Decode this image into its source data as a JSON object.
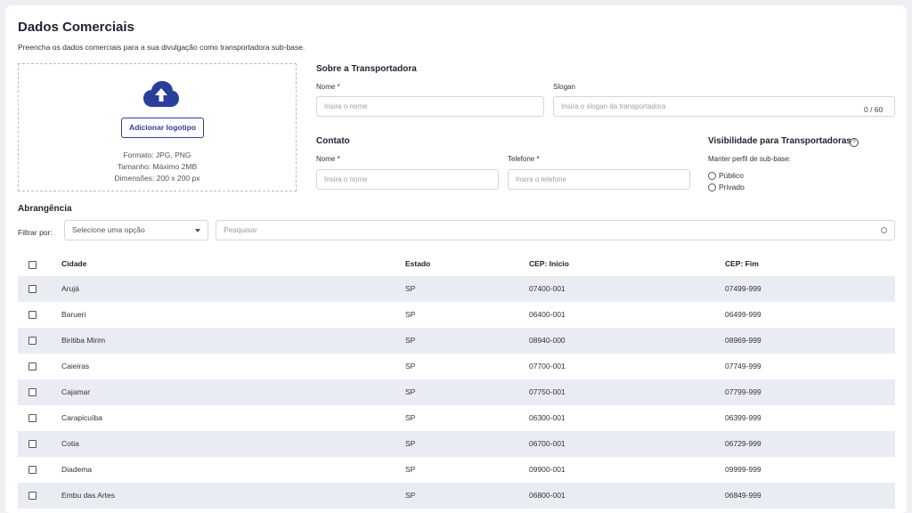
{
  "page": {
    "title": "Dados Comerciais",
    "subtitle": "Preencha os dados comerciais para a sua divulgação como transportadora sub-base."
  },
  "upload": {
    "button_label": "Adicionar logotipo",
    "format": "Formato: JPG, PNG",
    "size": "Tamanho: Máximo 2MB",
    "dimensions": "Dimensões: 200 x 200 px",
    "icon": "cloud-upload-icon"
  },
  "about": {
    "title": "Sobre a Transportadora",
    "name_label": "Nome *",
    "name_placeholder": "Insira o nome",
    "slogan_label": "Slogan",
    "slogan_placeholder": "Insira o slogan da transportadora",
    "slogan_counter": "0 / 60"
  },
  "contact": {
    "title": "Contato",
    "name_label": "Nome *",
    "name_placeholder": "Insira o nome",
    "phone_label": "Telefone *",
    "phone_placeholder": "Insira o telefone"
  },
  "visibility": {
    "title": "Visibilidade para Transportadoras",
    "help_icon": "help-circle-icon",
    "help_glyph": "?",
    "question": "Manter perfil de sub-base:",
    "options": [
      "Público",
      "Privado"
    ]
  },
  "coverage": {
    "title": "Abrangência",
    "filter_label": "Filtrar por:",
    "filter_placeholder": "Selecione uma opção",
    "search_placeholder": "Pesquisar",
    "columns": [
      "Cidade",
      "Estado",
      "CEP: Início",
      "CEP: Fim"
    ],
    "rows": [
      {
        "city": "Arujá",
        "state": "SP",
        "start": "07400-001",
        "end": "07499-999"
      },
      {
        "city": "Barueri",
        "state": "SP",
        "start": "06400-001",
        "end": "06499-999"
      },
      {
        "city": "Biritiba Mirim",
        "state": "SP",
        "start": "08940-000",
        "end": "08969-999"
      },
      {
        "city": "Caieiras",
        "state": "SP",
        "start": "07700-001",
        "end": "07749-999"
      },
      {
        "city": "Cajamar",
        "state": "SP",
        "start": "07750-001",
        "end": "07799-999"
      },
      {
        "city": "Carapicuíba",
        "state": "SP",
        "start": "06300-001",
        "end": "06399-999"
      },
      {
        "city": "Cotia",
        "state": "SP",
        "start": "06700-001",
        "end": "06729-999"
      },
      {
        "city": "Diadema",
        "state": "SP",
        "start": "09900-001",
        "end": "09999-999"
      },
      {
        "city": "Embu das Artes",
        "state": "SP",
        "start": "06800-001",
        "end": "06849-999"
      }
    ]
  },
  "colors": {
    "primary": "#2c3e9b",
    "row_alt": "#e9ecf3",
    "page_bg": "#eef0f4"
  }
}
